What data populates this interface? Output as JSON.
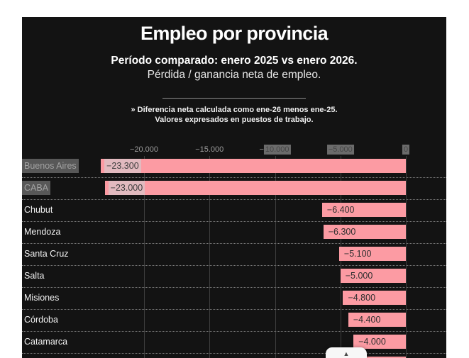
{
  "header": {
    "title": "Empleo por provincia",
    "subtitle_bold": "Período comparado: enero 2025 vs enero 2026.",
    "subtitle": "Pérdida / ganancia neta de empleo.",
    "note_line1": "» Diferencia neta calculada como ene-26 menos ene-25.",
    "note_line2": "Valores expresados en puestos de trabajo."
  },
  "chart_data": {
    "type": "bar",
    "orientation": "horizontal",
    "title": "Empleo por provincia",
    "unit": "puestos de trabajo",
    "categories": [
      "Buenos Aires",
      "CABA",
      "Chubut",
      "Mendoza",
      "Santa Cruz",
      "Salta",
      "Misiones",
      "Córdoba",
      "Catamarca",
      ""
    ],
    "values": [
      -23300,
      -23000,
      -6400,
      -6300,
      -5100,
      -5000,
      -4800,
      -4400,
      -4000,
      -3100
    ],
    "value_labels": [
      "−23.300",
      "−23.000",
      "−6.400",
      "−6.300",
      "−5.100",
      "−5.000",
      "−4.800",
      "−4.400",
      "−4.000",
      ""
    ],
    "axis": {
      "tick_labels": [
        "−20.000",
        "−15.000",
        "−10.000",
        "−5.000",
        "0"
      ],
      "tick_values": [
        -20000,
        -15000,
        -10000,
        -5000,
        0
      ]
    },
    "grid": true,
    "legend": "none",
    "bar_color": "#fc9ba3",
    "last_row_partially_visible": true
  },
  "selection": {
    "selected_categories": [
      "Buenos Aires",
      "CABA"
    ],
    "selected_value_labels": [
      "−23.300",
      "−23.000"
    ],
    "selected_tick_labels": [
      "−10.000",
      "−5.000",
      "0"
    ],
    "tick_with_minus_outside_selection": "−10.000"
  },
  "scroll_button": {
    "arrow_up": "▲"
  },
  "colors": {
    "background": "#131313",
    "bar": "#fc9ba3",
    "selection_on_dark": "#5e5e5e",
    "selection_on_bar": "#e2babf",
    "axis_text": "#9c9c9c",
    "gridline": "#3e3e3e",
    "divider": "#8d8d8d",
    "value_text": "#2e2e2e",
    "label_text": "#f2f2f2"
  }
}
